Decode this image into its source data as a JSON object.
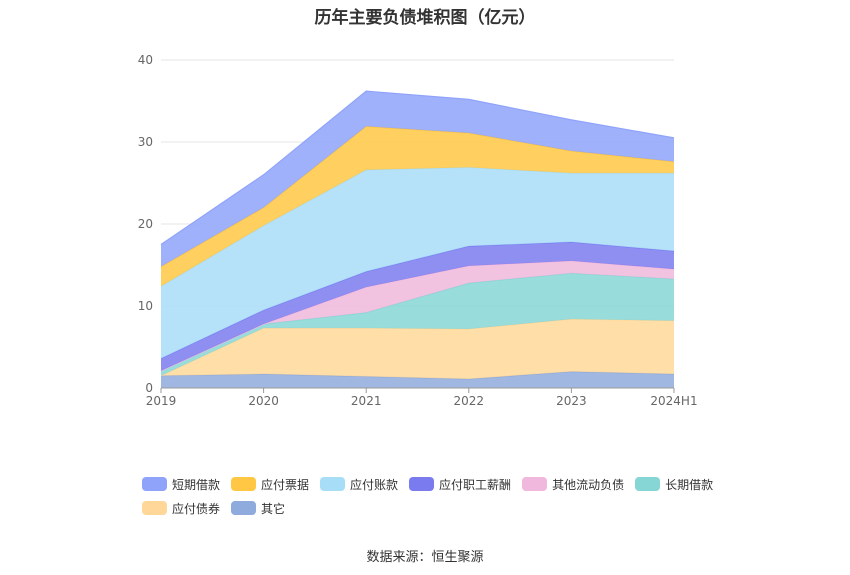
{
  "title": "历年主要负债堆积图（亿元）",
  "source": "数据来源：恒生聚源",
  "chart_data": {
    "type": "area",
    "stacked": true,
    "title": "历年主要负债堆积图（亿元）",
    "xlabel": "",
    "ylabel": "",
    "ylim": [
      0,
      40
    ],
    "yticks": [
      0,
      10,
      20,
      30,
      40
    ],
    "grid": true,
    "legend_position": "bottom",
    "categories": [
      "2019",
      "2020",
      "2021",
      "2022",
      "2023",
      "2024H1"
    ],
    "series": [
      {
        "name": "其它",
        "color": "#8faadc",
        "values": [
          1.5,
          1.7,
          1.4,
          1.1,
          2.0,
          1.7
        ]
      },
      {
        "name": "应付债券",
        "color": "#ffd899",
        "values": [
          0.0,
          5.6,
          5.9,
          6.1,
          6.4,
          6.5
        ]
      },
      {
        "name": "长期借款",
        "color": "#86d6d6",
        "values": [
          0.6,
          0.5,
          1.9,
          5.6,
          5.6,
          5.1
        ]
      },
      {
        "name": "其他流动负债",
        "color": "#f0b8dc",
        "values": [
          0.0,
          0.0,
          3.1,
          2.1,
          1.5,
          1.2
        ]
      },
      {
        "name": "应付职工薪酬",
        "color": "#7b7bf0",
        "values": [
          1.5,
          1.7,
          1.9,
          2.4,
          2.3,
          2.2
        ]
      },
      {
        "name": "应付账款",
        "color": "#a8ddf8",
        "values": [
          8.8,
          10.3,
          12.4,
          9.6,
          8.4,
          9.5
        ]
      },
      {
        "name": "应付票据",
        "color": "#ffc743",
        "values": [
          2.4,
          2.2,
          5.3,
          4.2,
          2.7,
          1.4
        ]
      },
      {
        "name": "短期借款",
        "color": "#8fa3fa",
        "values": [
          2.7,
          4.0,
          4.3,
          4.1,
          3.8,
          2.9
        ]
      }
    ],
    "legend_order": [
      "短期借款",
      "应付票据",
      "应付账款",
      "应付职工薪酬",
      "其他流动负债",
      "长期借款",
      "应付债券",
      "其它"
    ]
  }
}
